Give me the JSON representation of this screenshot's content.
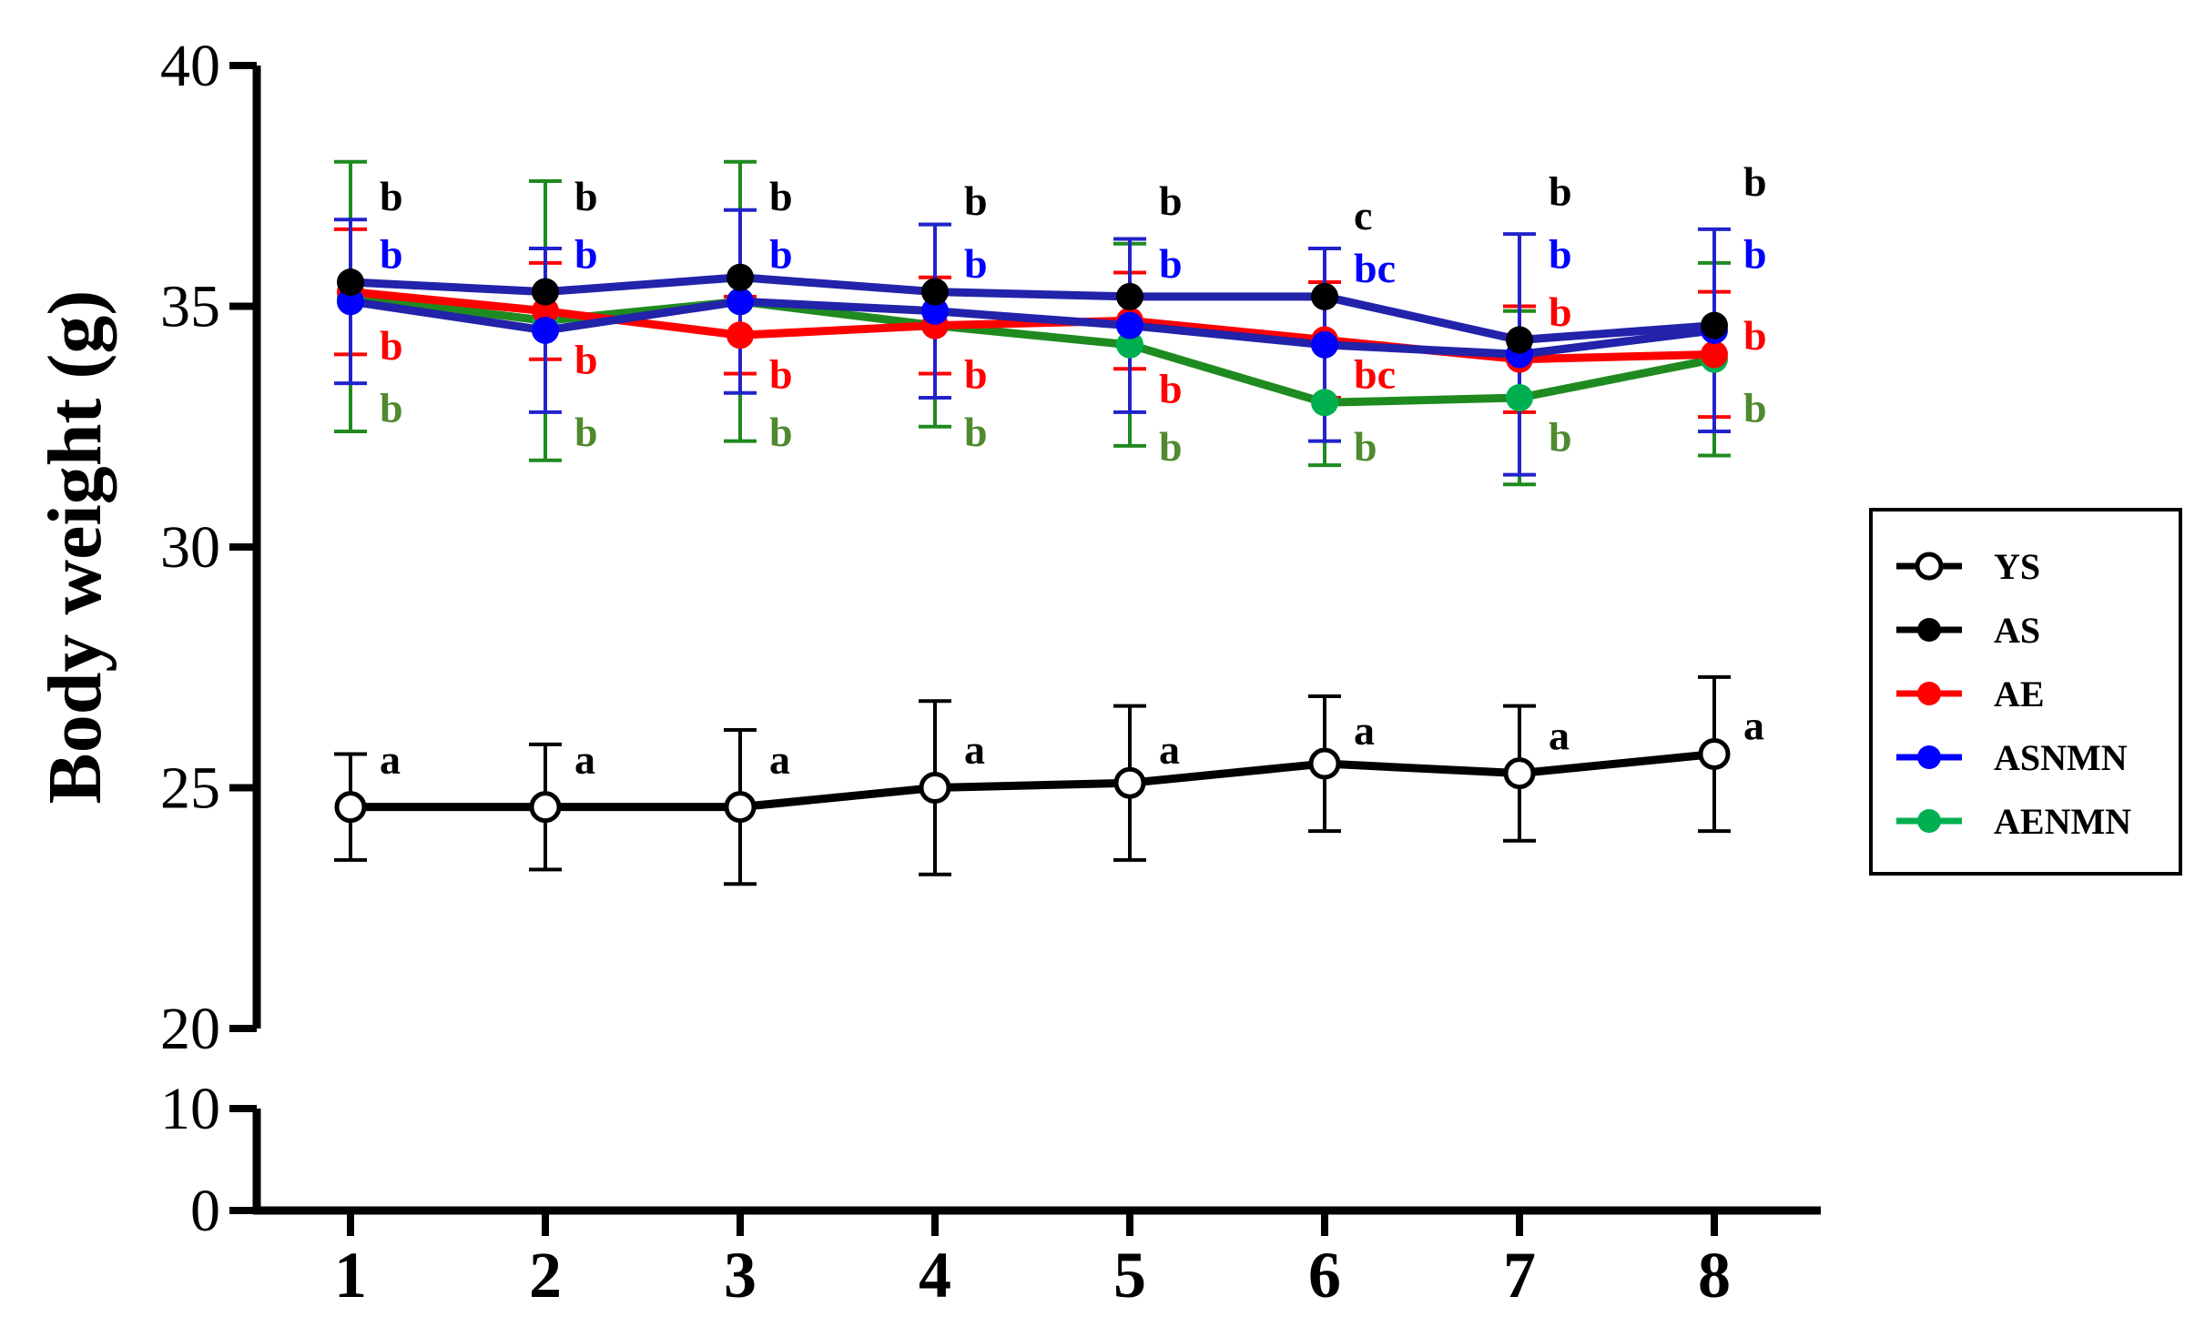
{
  "chart_data": {
    "type": "line",
    "title": "",
    "xlabel": "",
    "ylabel": "Body weight (g)",
    "x": [
      1,
      2,
      3,
      4,
      5,
      6,
      7,
      8
    ],
    "x_tick_labels": [
      "1",
      "2",
      "3",
      "4",
      "5",
      "6",
      "7",
      "8"
    ],
    "ylim": [
      0,
      40
    ],
    "y_axis_break": [
      10,
      20
    ],
    "y_ticks_lower": [
      "0",
      "10"
    ],
    "y_ticks_upper": [
      "20",
      "25",
      "30",
      "35",
      "40"
    ],
    "legend_position": "right",
    "series": [
      {
        "name": "YS",
        "color": "#000000",
        "marker": "open-circle",
        "values": [
          24.6,
          24.6,
          24.6,
          25.0,
          25.1,
          25.5,
          25.3,
          25.7
        ],
        "errors": [
          1.1,
          1.3,
          1.6,
          1.8,
          1.6,
          1.4,
          1.4,
          1.6
        ],
        "sig": [
          "a",
          "a",
          "a",
          "a",
          "a",
          "a",
          "a",
          "a"
        ],
        "sig_y": [
          25.6,
          25.6,
          25.6,
          25.8,
          25.8,
          26.2,
          26.1,
          26.3
        ]
      },
      {
        "name": "AS",
        "color": "#000000",
        "marker": "filled-circle",
        "values": [
          35.5,
          35.3,
          35.6,
          35.3,
          35.2,
          35.2,
          34.3,
          34.6
        ],
        "errors": [
          null,
          null,
          null,
          null,
          null,
          null,
          null,
          null
        ],
        "sig": [
          "b",
          "b",
          "b",
          "b",
          "b",
          "c",
          "b",
          "b"
        ],
        "sig_y": [
          37.3,
          37.3,
          37.3,
          37.2,
          37.2,
          36.9,
          37.4,
          37.6
        ]
      },
      {
        "name": "AE",
        "color": "#ff0000",
        "marker": "filled-circle",
        "values": [
          35.3,
          34.9,
          34.4,
          34.6,
          34.7,
          34.3,
          33.9,
          34.0
        ],
        "errors": [
          1.3,
          1.0,
          0.8,
          1.0,
          1.0,
          1.2,
          1.1,
          1.3
        ],
        "sig": [
          "b",
          "b",
          "b",
          "b",
          "b",
          "bc",
          "b",
          "b"
        ],
        "sig_y": [
          34.2,
          33.9,
          33.6,
          33.6,
          33.3,
          33.6,
          34.9,
          34.4
        ]
      },
      {
        "name": "ASNMN",
        "color": "#0000ff",
        "marker": "filled-circle",
        "values": [
          35.1,
          34.5,
          35.1,
          34.9,
          34.6,
          34.2,
          34.0,
          34.5
        ],
        "errors": [
          1.7,
          1.7,
          1.9,
          1.8,
          1.8,
          2.0,
          2.5,
          2.1
        ],
        "sig": [
          "b",
          "b",
          "b",
          "b",
          "b",
          "bc",
          "b",
          "b"
        ],
        "sig_y": [
          36.1,
          36.1,
          36.1,
          35.9,
          35.9,
          35.8,
          36.1,
          36.1
        ]
      },
      {
        "name": "AENMN",
        "color": "#00b050",
        "marker": "filled-circle",
        "values": [
          35.2,
          34.7,
          35.1,
          34.6,
          34.2,
          33.0,
          33.1,
          33.9
        ],
        "errors": [
          2.8,
          2.9,
          2.9,
          2.1,
          2.1,
          1.3,
          1.8,
          2.0
        ],
        "sig": [
          "b",
          "b",
          "b",
          "b",
          "b",
          "b",
          "b",
          "b"
        ],
        "sig_y": [
          32.9,
          32.4,
          32.4,
          32.4,
          32.1,
          32.1,
          32.3,
          32.9
        ]
      }
    ]
  }
}
